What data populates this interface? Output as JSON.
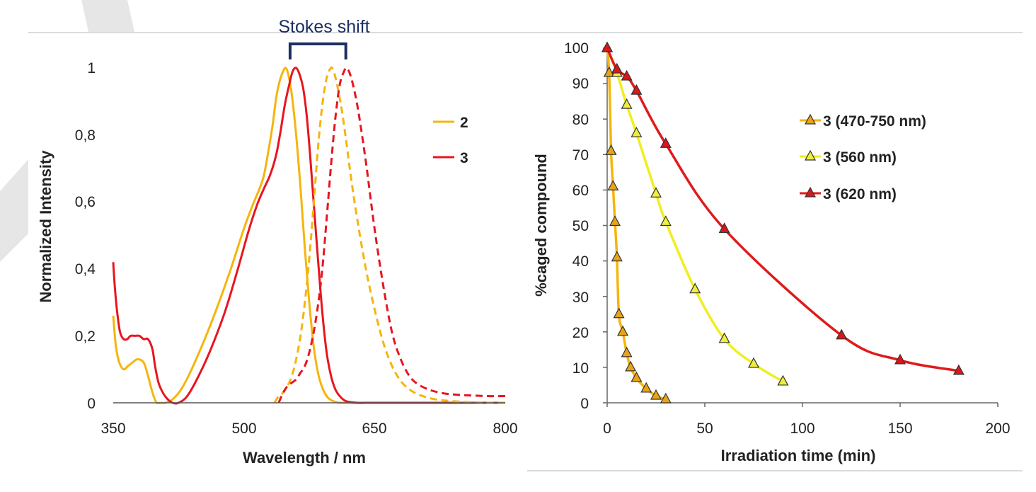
{
  "colors": {
    "compound2": "#f5b50e",
    "compound3": "#e8151f",
    "series_470_750": "#f5b50e",
    "series_560": "#f0ee1e",
    "series_620": "#e01a1a",
    "marker_470_750": "#e8a317",
    "marker_560": "#f0ee3c",
    "marker_620": "#d9171b",
    "annotation": "#1c2e60",
    "background_line": "#cccccc"
  },
  "chart_data": [
    {
      "type": "line",
      "title": "",
      "xlabel": "Wavelength / nm",
      "ylabel": "Normalized Intensity",
      "xlim": [
        350,
        800
      ],
      "ylim": [
        0,
        1
      ],
      "xticks": [
        "350",
        "500",
        "650",
        "800"
      ],
      "yticks": [
        "0",
        "0,2",
        "0,4",
        "0,6",
        "0,8",
        "1"
      ],
      "annotation": "Stokes shift",
      "annotation_range": [
        553,
        617
      ],
      "legend": [
        {
          "label": "2",
          "color_key": "compound2"
        },
        {
          "label": "3",
          "color_key": "compound3"
        }
      ],
      "series": [
        {
          "name": "2 absorption",
          "color_key": "compound2",
          "dash": false,
          "x": [
            350,
            353,
            357,
            362,
            367,
            372,
            378,
            385,
            390,
            394,
            397,
            400,
            405,
            410,
            418,
            428,
            440,
            455,
            470,
            485,
            500,
            510,
            518,
            523,
            528,
            533,
            537,
            541,
            545,
            548,
            551,
            555,
            560,
            565,
            570,
            575,
            580,
            585,
            590,
            595,
            600,
            605,
            610,
            620,
            650,
            700,
            800
          ],
          "y": [
            0.26,
            0.17,
            0.12,
            0.1,
            0.11,
            0.12,
            0.13,
            0.12,
            0.08,
            0.04,
            0.015,
            0.0,
            0.0,
            0.0,
            0.01,
            0.04,
            0.1,
            0.19,
            0.29,
            0.4,
            0.52,
            0.59,
            0.64,
            0.68,
            0.75,
            0.83,
            0.91,
            0.96,
            0.99,
            1.0,
            0.98,
            0.92,
            0.8,
            0.64,
            0.46,
            0.3,
            0.17,
            0.09,
            0.045,
            0.02,
            0.008,
            0.003,
            0.0,
            0.0,
            0.0,
            0.0,
            0.0
          ]
        },
        {
          "name": "3 absorption",
          "color_key": "compound3",
          "dash": false,
          "x": [
            350,
            352,
            355,
            358,
            362,
            366,
            370,
            375,
            380,
            385,
            390,
            395,
            398,
            402,
            407,
            412,
            418,
            425,
            435,
            448,
            462,
            478,
            492,
            505,
            515,
            523,
            530,
            537,
            542,
            547,
            552,
            556,
            560,
            564,
            568,
            572,
            576,
            580,
            585,
            590,
            595,
            600,
            605,
            610,
            615,
            620,
            630,
            650,
            700,
            800
          ],
          "y": [
            0.42,
            0.34,
            0.26,
            0.21,
            0.19,
            0.19,
            0.2,
            0.2,
            0.2,
            0.19,
            0.19,
            0.16,
            0.11,
            0.06,
            0.03,
            0.012,
            0.0,
            0.0,
            0.02,
            0.08,
            0.16,
            0.27,
            0.39,
            0.51,
            0.59,
            0.64,
            0.68,
            0.74,
            0.81,
            0.89,
            0.95,
            0.99,
            1.0,
            0.98,
            0.94,
            0.86,
            0.74,
            0.6,
            0.43,
            0.27,
            0.15,
            0.08,
            0.04,
            0.02,
            0.008,
            0.003,
            0.0,
            0.0,
            0.0,
            0.0
          ]
        },
        {
          "name": "2 emission",
          "color_key": "compound2",
          "dash": true,
          "x": [
            535,
            540,
            545,
            550,
            555,
            560,
            565,
            570,
            575,
            580,
            585,
            590,
            595,
            600,
            603,
            607,
            612,
            617,
            622,
            630,
            640,
            650,
            660,
            670,
            680,
            690,
            700,
            715,
            730,
            745,
            760,
            780,
            800
          ],
          "y": [
            0.0,
            0.02,
            0.03,
            0.05,
            0.08,
            0.13,
            0.2,
            0.3,
            0.43,
            0.59,
            0.76,
            0.89,
            0.97,
            1.0,
            0.99,
            0.95,
            0.88,
            0.79,
            0.69,
            0.55,
            0.4,
            0.28,
            0.18,
            0.11,
            0.065,
            0.04,
            0.025,
            0.013,
            0.007,
            0.004,
            0.002,
            0.0,
            0.0
          ]
        },
        {
          "name": "3 emission",
          "color_key": "compound3",
          "dash": true,
          "x": [
            540,
            545,
            550,
            555,
            560,
            565,
            570,
            575,
            580,
            585,
            590,
            595,
            600,
            605,
            610,
            615,
            618,
            622,
            627,
            632,
            640,
            650,
            660,
            670,
            680,
            690,
            700,
            715,
            730,
            745,
            760,
            780,
            800
          ],
          "y": [
            0.0,
            0.03,
            0.05,
            0.06,
            0.07,
            0.09,
            0.11,
            0.15,
            0.21,
            0.29,
            0.4,
            0.55,
            0.71,
            0.85,
            0.95,
            0.99,
            1.0,
            0.98,
            0.93,
            0.86,
            0.72,
            0.52,
            0.35,
            0.21,
            0.13,
            0.08,
            0.055,
            0.037,
            0.028,
            0.024,
            0.022,
            0.02,
            0.02
          ]
        }
      ]
    },
    {
      "type": "scatter",
      "title": "",
      "xlabel": "Irradiation time (min)",
      "ylabel": "%caged compound",
      "xlim": [
        0,
        200
      ],
      "ylim": [
        0,
        100
      ],
      "xticks": [
        "0",
        "50",
        "100",
        "150",
        "200"
      ],
      "yticks": [
        "0",
        "10",
        "20",
        "30",
        "40",
        "50",
        "60",
        "70",
        "80",
        "90",
        "100"
      ],
      "legend": [
        {
          "label": "3 (470-750 nm)",
          "color_key": "series_470_750",
          "marker_key": "marker_470_750"
        },
        {
          "label": "3 (560 nm)",
          "color_key": "series_560",
          "marker_key": "marker_560"
        },
        {
          "label": "3 (620 nm)",
          "color_key": "series_620",
          "marker_key": "marker_620"
        }
      ],
      "series": [
        {
          "name": "3 (470-750 nm)",
          "color_key": "series_470_750",
          "marker_key": "marker_470_750",
          "x": [
            0,
            1,
            2,
            3,
            4,
            5,
            6,
            8,
            10,
            12,
            15,
            20,
            25,
            30
          ],
          "y": [
            100,
            93,
            71,
            61,
            51,
            41,
            25,
            20,
            14,
            10,
            7,
            4,
            2,
            1
          ]
        },
        {
          "name": "3 (560 nm)",
          "color_key": "series_560",
          "marker_key": "marker_560",
          "x": [
            0,
            5,
            10,
            15,
            25,
            30,
            45,
            60,
            75,
            90
          ],
          "y": [
            100,
            93,
            84,
            76,
            59,
            51,
            32,
            18,
            11,
            6
          ]
        },
        {
          "name": "3 (620 nm)",
          "color_key": "series_620",
          "marker_key": "marker_620",
          "x": [
            0,
            5,
            10,
            15,
            30,
            60,
            120,
            150,
            180
          ],
          "y": [
            100,
            94,
            92,
            88,
            73,
            49,
            19,
            12,
            9
          ]
        }
      ]
    }
  ]
}
